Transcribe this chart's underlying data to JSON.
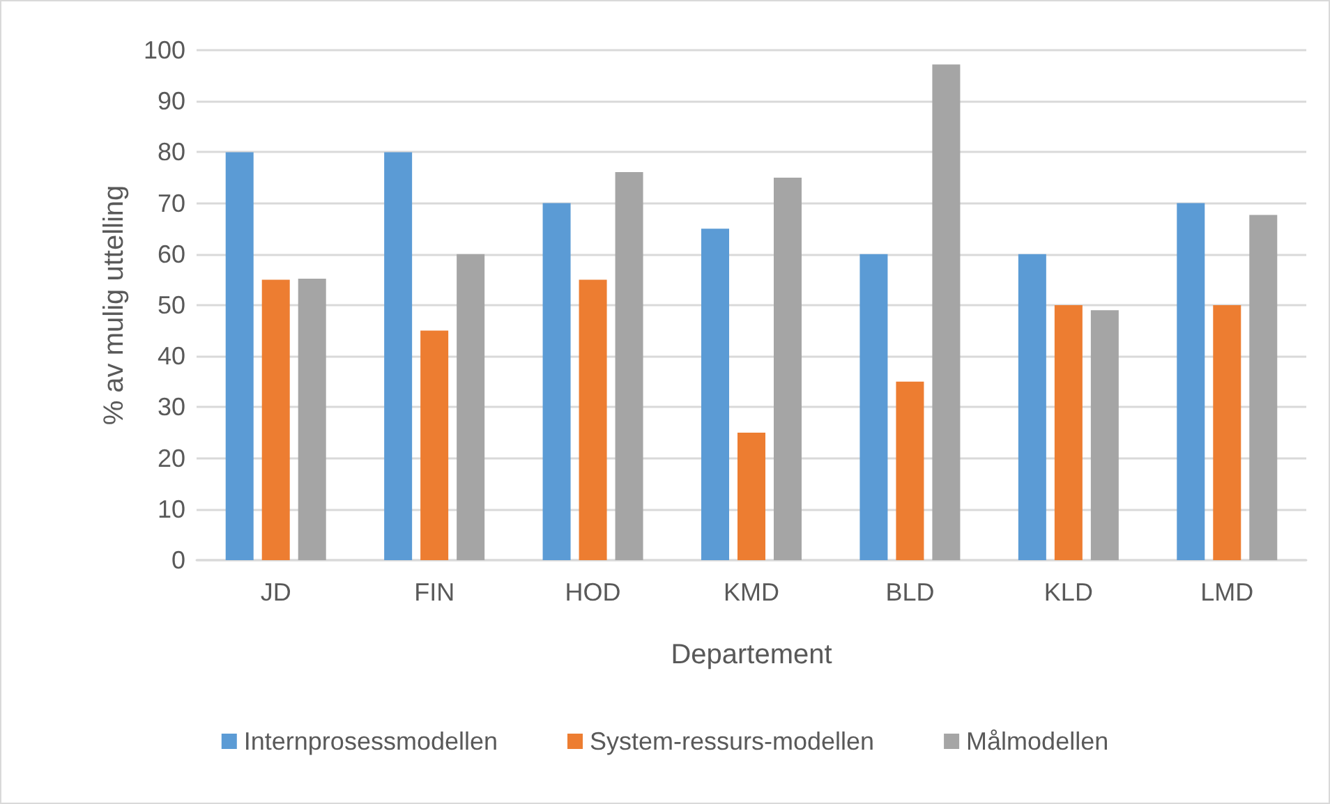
{
  "chart_data": {
    "type": "bar",
    "xlabel": "Departement",
    "ylabel": "% av mulig uttelling",
    "categories": [
      "JD",
      "FIN",
      "HOD",
      "KMD",
      "BLD",
      "KLD",
      "LMD"
    ],
    "series": [
      {
        "name": "Internprosessmodellen",
        "color": "#5b9bd5",
        "values": [
          80,
          80,
          70,
          65,
          60,
          60,
          70
        ]
      },
      {
        "name": "System-ressurs-modellen",
        "color": "#ed7d31",
        "values": [
          55,
          45,
          55,
          25,
          35,
          50,
          50
        ]
      },
      {
        "name": "Målmodellen",
        "color": "#a5a5a5",
        "values": [
          55.2,
          60,
          76.1,
          75,
          97.2,
          49,
          67.7
        ]
      }
    ],
    "ylim": [
      0,
      100
    ],
    "yticks": [
      0,
      10,
      20,
      30,
      40,
      50,
      60,
      70,
      80,
      90,
      100
    ],
    "grid": "y",
    "legend": "bottom"
  }
}
